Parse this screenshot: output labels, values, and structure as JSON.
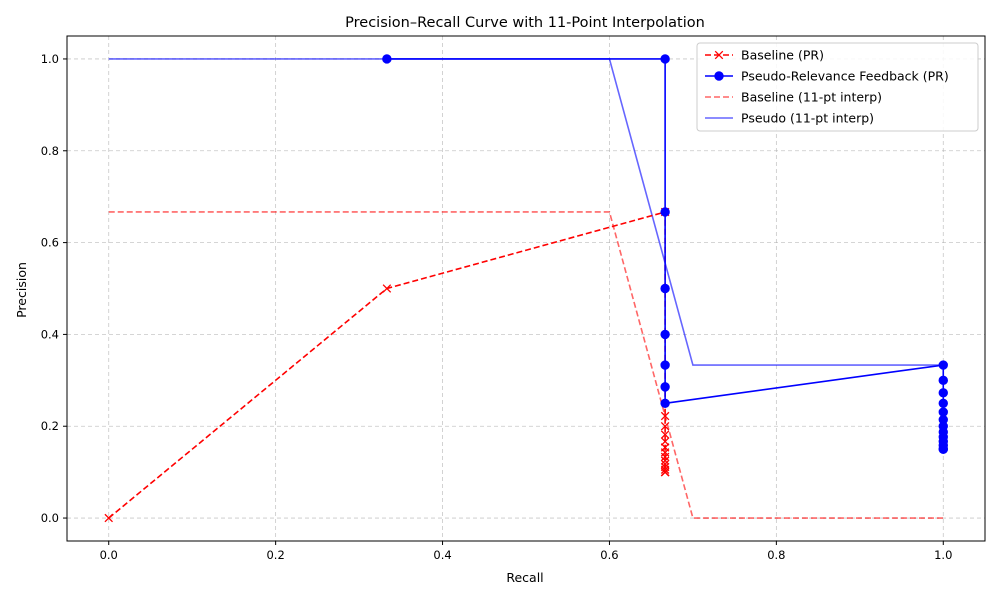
{
  "chart_data": {
    "type": "line",
    "title": "Precision–Recall Curve with 11-Point Interpolation",
    "xlabel": "Recall",
    "ylabel": "Precision",
    "xlim": [
      -0.05,
      1.05
    ],
    "ylim": [
      -0.05,
      1.05
    ],
    "xticks": [
      "0.0",
      "0.2",
      "0.4",
      "0.6",
      "0.8",
      "1.0"
    ],
    "yticks": [
      "0.0",
      "0.2",
      "0.4",
      "0.6",
      "0.8",
      "1.0"
    ],
    "grid": true,
    "legend_position": "top-right",
    "series": [
      {
        "name": "Baseline (PR)",
        "color": "#ff0000",
        "style": "dashed",
        "marker": "x",
        "x": [
          0.0,
          0.3333,
          0.6667,
          0.6667,
          0.6667,
          0.6667,
          0.6667,
          0.6667,
          0.6667,
          0.6667,
          0.6667,
          0.6667,
          0.6667,
          0.6667,
          0.6667,
          0.6667,
          0.6667,
          0.6667
        ],
        "y": [
          0.0,
          0.5,
          0.6667,
          0.2222,
          0.2,
          0.1818,
          0.1667,
          0.1538,
          0.1429,
          0.1333,
          0.125,
          0.1176,
          0.1111,
          0.1053,
          0.1,
          0.1,
          0.1,
          0.1
        ]
      },
      {
        "name": "Pseudo-Relevance Feedback (PR)",
        "color": "#0000ff",
        "style": "solid",
        "marker": "o",
        "x": [
          0.3333,
          0.6667,
          0.6667,
          0.6667,
          0.6667,
          0.6667,
          0.6667,
          0.6667,
          1.0,
          1.0,
          1.0,
          1.0,
          1.0,
          1.0,
          1.0,
          1.0,
          1.0,
          1.0,
          1.0,
          1.0,
          1.0
        ],
        "y": [
          1.0,
          1.0,
          0.6667,
          0.5,
          0.4,
          0.3333,
          0.2857,
          0.25,
          0.3333,
          0.3,
          0.2727,
          0.25,
          0.2308,
          0.2143,
          0.2,
          0.1875,
          0.1765,
          0.1667,
          0.1579,
          0.15,
          0.15
        ]
      },
      {
        "name": "Baseline (11-pt interp)",
        "color": "#ff0000",
        "style": "dashed",
        "marker": "none",
        "alpha": 0.6,
        "x": [
          0.0,
          0.1,
          0.2,
          0.3,
          0.4,
          0.5,
          0.6,
          0.7,
          0.8,
          0.9,
          1.0
        ],
        "y": [
          0.6667,
          0.6667,
          0.6667,
          0.6667,
          0.6667,
          0.6667,
          0.6667,
          0.0,
          0.0,
          0.0,
          0.0
        ]
      },
      {
        "name": "Pseudo (11-pt interp)",
        "color": "#0000ff",
        "style": "solid",
        "marker": "none",
        "alpha": 0.6,
        "x": [
          0.0,
          0.1,
          0.2,
          0.3,
          0.4,
          0.5,
          0.6,
          0.7,
          0.8,
          0.9,
          1.0
        ],
        "y": [
          1.0,
          1.0,
          1.0,
          1.0,
          1.0,
          1.0,
          1.0,
          0.3333,
          0.3333,
          0.3333,
          0.3333
        ]
      }
    ]
  }
}
